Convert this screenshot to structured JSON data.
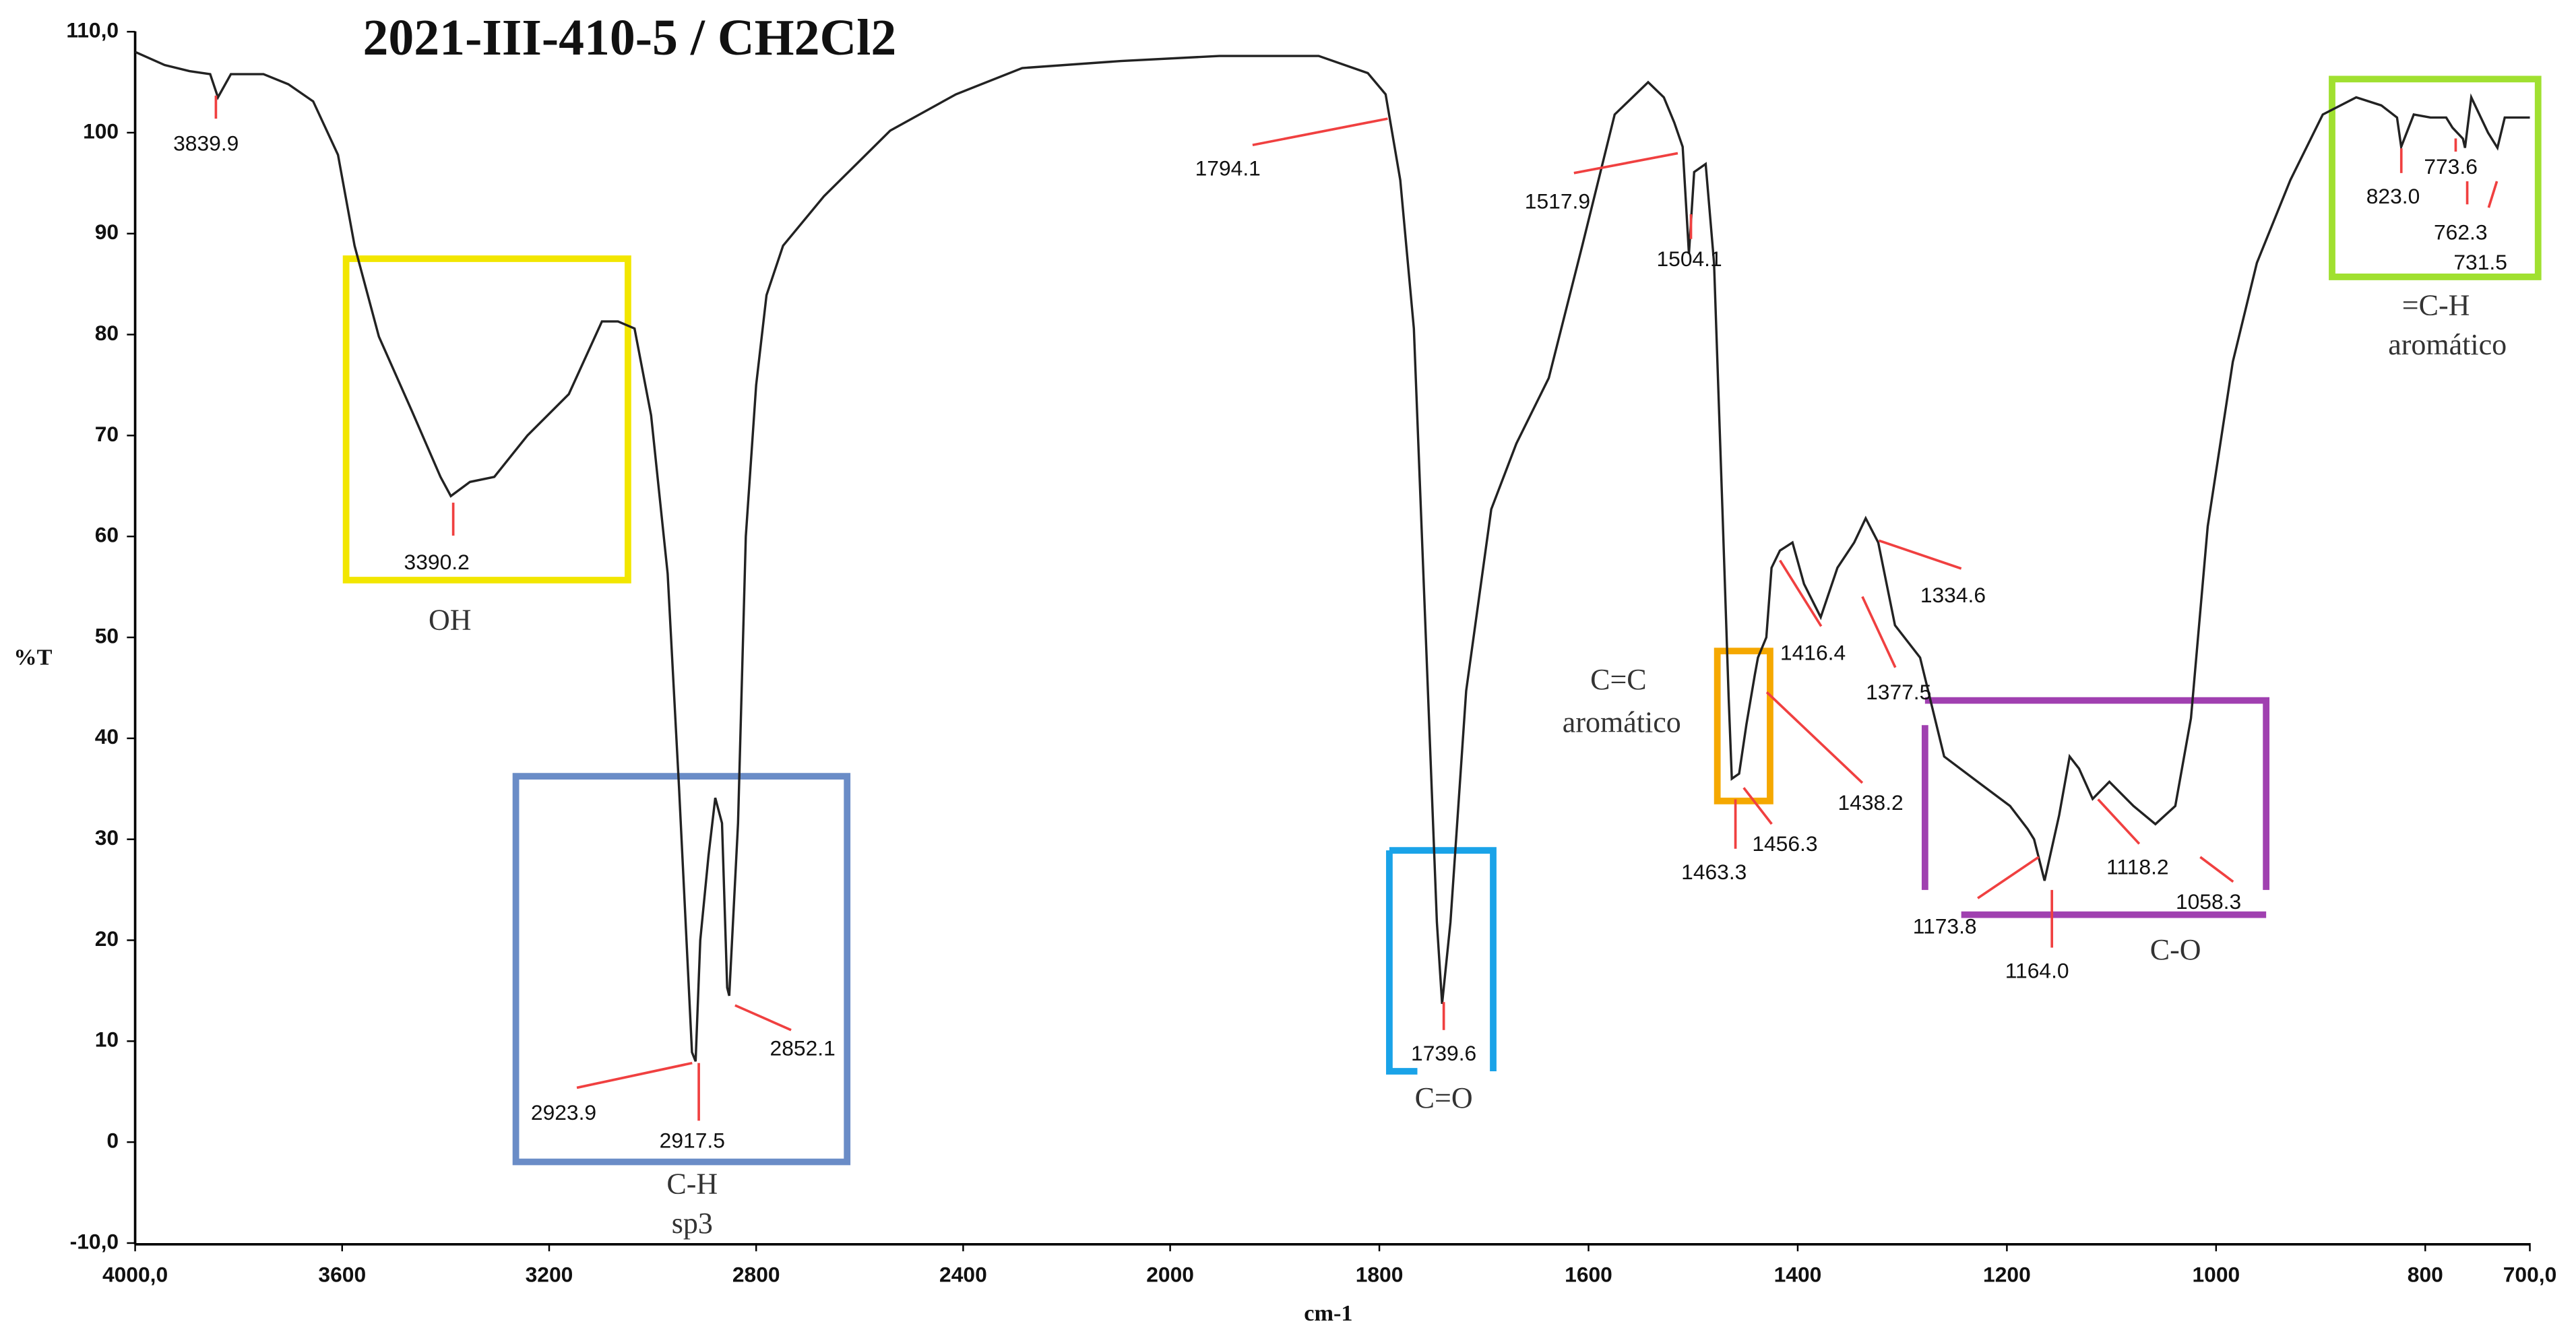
{
  "chart_data": {
    "type": "line",
    "title": "2021-III-410-5 / CH2Cl2",
    "x_label": "cm-1",
    "y_label": "%T",
    "xlim": [
      4000,
      700
    ],
    "x_scale_break": 2000,
    "ylim": [
      -10,
      110
    ],
    "xticks": [
      {
        "value": 4000,
        "label": "4000,0"
      },
      3600,
      3200,
      2800,
      2400,
      2000,
      1800,
      1600,
      1400,
      1200,
      1000,
      800,
      {
        "value": 700,
        "label": "700,0"
      }
    ],
    "yticks": [
      {
        "value": -10,
        "label": "-10,0"
      },
      0,
      10,
      20,
      30,
      40,
      50,
      60,
      70,
      80,
      90,
      100,
      {
        "value": 110,
        "label": "110,0"
      }
    ],
    "color": "#222222",
    "x": [
      4000,
      3943,
      3895,
      3855,
      3840,
      3815,
      3752,
      3704,
      3656,
      3608,
      3576,
      3529,
      3465,
      3410,
      3390,
      3353,
      3306,
      3242,
      3162,
      3098,
      3067,
      3035,
      3003,
      2971,
      2949,
      2924,
      2917,
      2908,
      2892,
      2879,
      2866,
      2856,
      2852,
      2835,
      2820,
      2800,
      2780,
      2748,
      2669,
      2541,
      2414,
      2286,
      2095,
      1953,
      1858,
      1811,
      1794,
      1780,
      1767,
      1756,
      1745,
      1740,
      1732,
      1717,
      1693,
      1669,
      1638,
      1606,
      1575,
      1543,
      1528,
      1518,
      1510,
      1504,
      1499,
      1488,
      1480,
      1472,
      1466,
      1463,
      1456,
      1449,
      1441,
      1438,
      1430,
      1425,
      1417,
      1405,
      1394,
      1378,
      1362,
      1346,
      1335,
      1323,
      1307,
      1283,
      1260,
      1228,
      1197,
      1180,
      1174,
      1164,
      1150,
      1140,
      1131,
      1118,
      1102,
      1079,
      1058,
      1039,
      1024,
      1008,
      984,
      961,
      929,
      898,
      866,
      842,
      827,
      823,
      811,
      795,
      780,
      774,
      764,
      762,
      756,
      740,
      731,
      724,
      700
    ],
    "values": [
      108,
      106.7,
      106.1,
      105.8,
      103.5,
      105.8,
      105.8,
      104.8,
      103.1,
      97.8,
      88.8,
      79.8,
      72.4,
      65.9,
      64,
      65.4,
      65.9,
      70,
      74.1,
      81.3,
      81.3,
      80.6,
      72,
      56.3,
      35.1,
      8.9,
      8,
      20,
      28.4,
      34.1,
      31.6,
      15.3,
      14.5,
      31.6,
      60,
      75,
      83.9,
      88.8,
      93.7,
      100.2,
      103.8,
      106.4,
      107.1,
      107.6,
      107.6,
      105.9,
      103.8,
      95.3,
      80.6,
      51.2,
      21.8,
      13.7,
      21.8,
      44.7,
      62.7,
      69.2,
      75.7,
      88.8,
      101.8,
      105,
      103.5,
      101,
      98.6,
      88,
      96.1,
      96.9,
      87.1,
      62.7,
      44,
      36,
      36.5,
      41.4,
      46.3,
      48,
      50,
      56.9,
      58.6,
      59.4,
      55.3,
      52,
      56.9,
      59.4,
      61.8,
      59.4,
      51.2,
      48,
      38.2,
      35.7,
      33.3,
      31,
      30,
      25.9,
      32.4,
      38.2,
      37,
      34,
      35.7,
      33.3,
      31.5,
      33.3,
      42,
      61,
      77.3,
      87.1,
      95.3,
      101.8,
      103.5,
      102.7,
      101.5,
      98.6,
      101.8,
      101.5,
      101.5,
      100.5,
      99.4,
      98.5,
      103.5,
      100,
      98.5,
      101.5,
      101.5
    ],
    "peaks": [
      {
        "x": 3839.9,
        "label": "3839.9"
      },
      {
        "x": 3390.2,
        "label": "3390.2"
      },
      {
        "x": 2923.9,
        "label": "2923.9"
      },
      {
        "x": 2917.5,
        "label": "2917.5"
      },
      {
        "x": 2852.1,
        "label": "2852.1"
      },
      {
        "x": 1794.1,
        "label": "1794.1"
      },
      {
        "x": 1739.6,
        "label": "1739.6"
      },
      {
        "x": 1517.9,
        "label": "1517.9"
      },
      {
        "x": 1504.1,
        "label": "1504.1"
      },
      {
        "x": 1463.3,
        "label": "1463.3"
      },
      {
        "x": 1456.3,
        "label": "1456.3"
      },
      {
        "x": 1438.2,
        "label": "1438.2"
      },
      {
        "x": 1416.4,
        "label": "1416.4"
      },
      {
        "x": 1377.5,
        "label": "1377.5"
      },
      {
        "x": 1334.6,
        "label": "1334.6"
      },
      {
        "x": 1173.8,
        "label": "1173.8"
      },
      {
        "x": 1164.0,
        "label": "1164.0"
      },
      {
        "x": 1118.2,
        "label": "1118.2"
      },
      {
        "x": 1058.3,
        "label": "1058.3"
      },
      {
        "x": 823.0,
        "label": "823.0"
      },
      {
        "x": 773.6,
        "label": "773.6"
      },
      {
        "x": 762.3,
        "label": "762.3"
      },
      {
        "x": 731.5,
        "label": "731.5"
      }
    ],
    "peak_color": "#f04040",
    "regions": [
      {
        "lines": [
          "OH"
        ],
        "color": "#f2e600"
      },
      {
        "lines": [
          "C-H",
          "sp3"
        ],
        "color": "#6a8cc7"
      },
      {
        "lines": [
          "C=O"
        ],
        "color": "#1aa3e8"
      },
      {
        "lines": [
          "C=C",
          "aromático"
        ],
        "color": "#f5a800"
      },
      {
        "lines": [
          "C-O"
        ],
        "color": "#a040b0"
      },
      {
        "lines": [
          "=C-H",
          "aromático"
        ],
        "color": "#a0e030"
      }
    ]
  }
}
